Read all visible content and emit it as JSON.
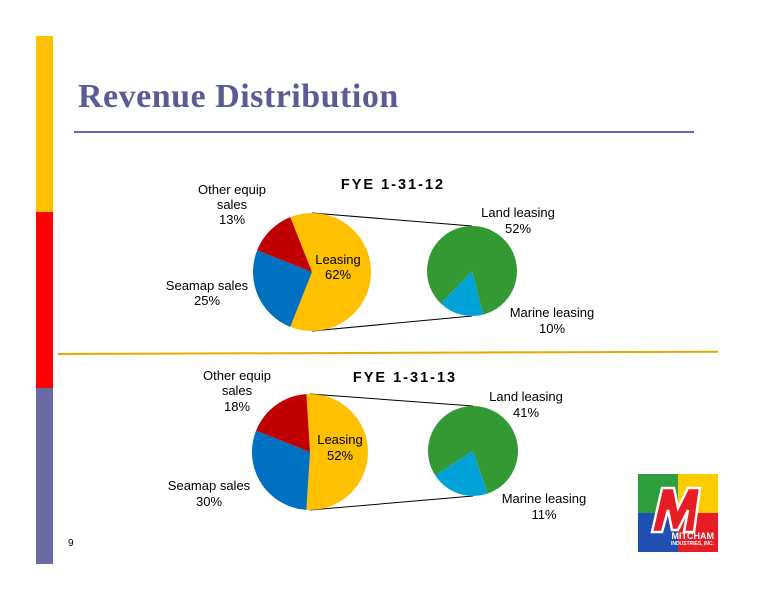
{
  "slide": {
    "title": "Revenue Distribution",
    "page_number": "9"
  },
  "colors": {
    "leasing": "#ffc000",
    "seamap": "#0070c0",
    "other": "#c00000",
    "land": "#339933",
    "marine": "#00a2d8",
    "title": "#5b5b95"
  },
  "logo": {
    "text": "MITCHAM",
    "subtext": "INDUSTRIES, INC.",
    "letter": "M"
  },
  "chart_data": [
    {
      "type": "pie",
      "title": "FYE 1-31-12",
      "main_pie": [
        {
          "label": "Leasing",
          "value": 62,
          "value_label": "62%"
        },
        {
          "label": "Seamap sales",
          "value": 25,
          "value_label": "25%"
        },
        {
          "label": "Other equip sales",
          "label_lines": [
            "Other equip",
            "sales"
          ],
          "value": 13,
          "value_label": "13%"
        }
      ],
      "breakdown_of": "Leasing",
      "breakdown_pie": [
        {
          "label": "Land leasing",
          "value": 52,
          "value_label": "52%"
        },
        {
          "label": "Marine leasing",
          "value": 10,
          "value_label": "10%"
        }
      ]
    },
    {
      "type": "pie",
      "title": "FYE 1-31-13",
      "main_pie": [
        {
          "label": "Leasing",
          "value": 52,
          "value_label": "52%"
        },
        {
          "label": "Seamap sales",
          "value": 30,
          "value_label": "30%"
        },
        {
          "label": "Other equip sales",
          "label_lines": [
            "Other equip",
            "sales"
          ],
          "value": 18,
          "value_label": "18%"
        }
      ],
      "breakdown_of": "Leasing",
      "breakdown_pie": [
        {
          "label": "Land leasing",
          "value": 41,
          "value_label": "41%"
        },
        {
          "label": "Marine leasing",
          "value": 11,
          "value_label": "11%"
        }
      ]
    }
  ]
}
